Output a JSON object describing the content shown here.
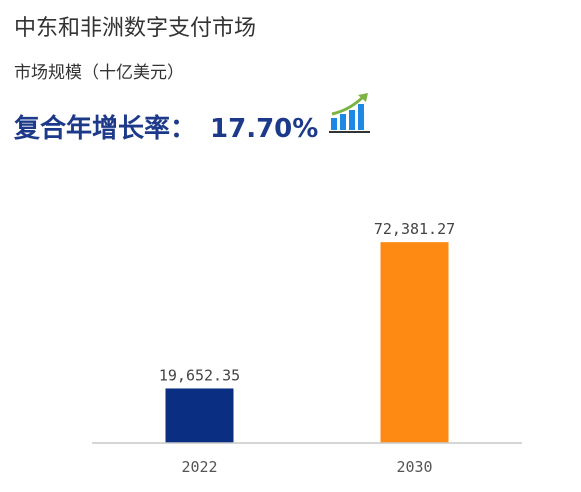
{
  "header": {
    "title": "中东和非洲数字支付市场",
    "subtitle": "市场规模（十亿美元）",
    "cagr_label": "复合年增长率：",
    "cagr_value": "17.70%",
    "icon": "growth-chart-icon"
  },
  "chart_data": {
    "type": "bar",
    "title": "中东和非洲数字支付市场",
    "ylabel": "市场规模（十亿美元）",
    "categories": [
      "2022",
      "2030"
    ],
    "values": [
      19652.35,
      72381.27
    ],
    "value_labels": [
      "19,652.35",
      "72,381.27"
    ],
    "colors": [
      "#0a2f82",
      "#ff8a13"
    ],
    "ylim": [
      0,
      80000
    ],
    "grid": false,
    "legend": "none"
  }
}
